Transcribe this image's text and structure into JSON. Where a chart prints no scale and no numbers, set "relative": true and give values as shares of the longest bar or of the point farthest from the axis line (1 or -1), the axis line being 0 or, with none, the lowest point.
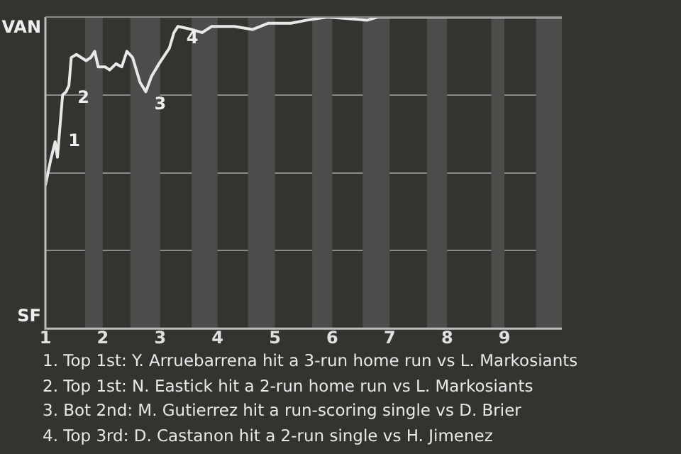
{
  "chart_data": {
    "type": "line",
    "relative": true,
    "x": [
      1.0,
      1.09,
      1.17,
      1.21,
      1.25,
      1.3,
      1.36,
      1.41,
      1.45,
      1.54,
      1.71,
      1.79,
      1.86,
      1.92,
      2.04,
      2.12,
      2.23,
      2.33,
      2.42,
      2.52,
      2.65,
      2.75,
      2.85,
      2.98,
      3.16,
      3.24,
      3.31,
      3.55,
      3.73,
      3.9,
      4.29,
      4.61,
      4.88,
      5.28,
      5.56,
      5.92,
      6.61,
      6.79,
      8.89,
      9.03,
      10.0
    ],
    "series": [
      {
        "color": "#e8e8e8",
        "values": [
          0.46,
          0.54,
          0.6,
          0.55,
          0.64,
          0.75,
          0.76,
          0.78,
          0.87,
          0.88,
          0.86,
          0.87,
          0.89,
          0.84,
          0.84,
          0.83,
          0.85,
          0.84,
          0.89,
          0.87,
          0.79,
          0.76,
          0.81,
          0.85,
          0.9,
          0.95,
          0.97,
          0.96,
          0.95,
          0.97,
          0.97,
          0.96,
          0.98,
          0.98,
          0.99,
          1.0,
          0.99,
          1.0,
          1.0,
          1.0,
          1.0
        ]
      }
    ],
    "xlim": [
      1,
      10
    ],
    "xticks": [
      1,
      2,
      3,
      4,
      5,
      6,
      7,
      8,
      9
    ],
    "grid": "y",
    "legend": false,
    "marker": "none",
    "line_style": "solid",
    "bands": [
      {
        "axis": "x",
        "from": 1.69,
        "to": 2,
        "color": "#4d4c4a"
      },
      {
        "axis": "x",
        "from": 2.48,
        "to": 3,
        "color": "#4d4c4a"
      },
      {
        "axis": "x",
        "from": 3.55,
        "to": 4,
        "color": "#4d4c4a"
      },
      {
        "axis": "x",
        "from": 4.53,
        "to": 5,
        "color": "#4d4c4a"
      },
      {
        "axis": "x",
        "from": 5.65,
        "to": 6,
        "color": "#4d4c4a"
      },
      {
        "axis": "x",
        "from": 6.53,
        "to": 7,
        "color": "#4d4c4a"
      },
      {
        "axis": "x",
        "from": 7.65,
        "to": 8,
        "color": "#4d4c4a"
      },
      {
        "axis": "x",
        "from": 8.77,
        "to": 9,
        "color": "#4d4c4a"
      },
      {
        "axis": "x",
        "from": 9.55,
        "to": 10,
        "color": "#4d4c4a"
      }
    ],
    "annotations": [
      "VAN",
      "SF",
      {
        "text": "1",
        "x": 1.25,
        "y": 0.64
      },
      {
        "text": "2",
        "x": 1.41,
        "y": 0.78
      },
      {
        "text": "3",
        "x": 2.75,
        "y": 0.76
      },
      {
        "text": "4",
        "x": 3.31,
        "y": 0.97
      },
      "1. Top 1st: Y. Arruebarrena hit a 3-run home run vs L. Markosiants",
      "2. Top 1st: N. Eastick hit a 2-run home run vs L. Markosiants",
      "3. Bot 2nd: M. Gutierrez hit a run-scoring single vs D. Brier",
      "4. Top 3rd: D. Castanon hit a 2-run single vs H. Jimenez"
    ]
  }
}
